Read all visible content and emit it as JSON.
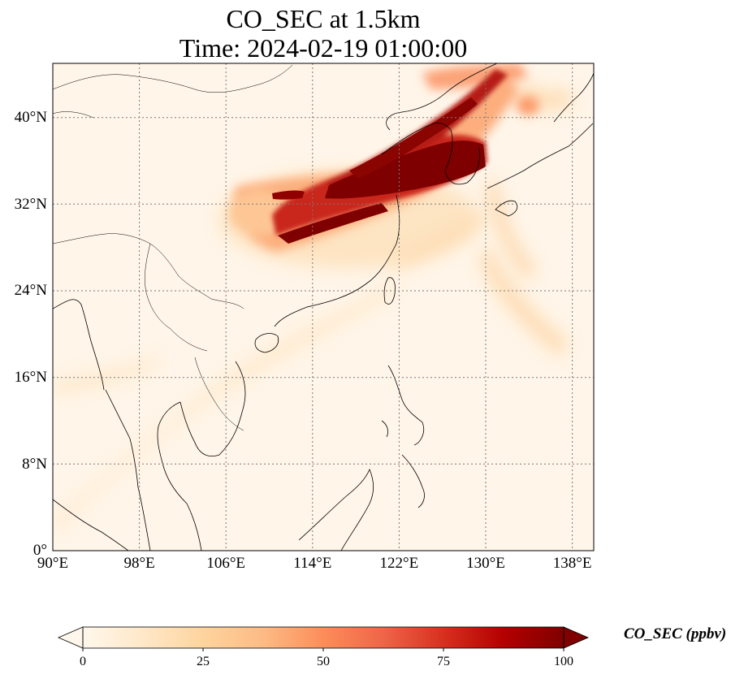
{
  "title_line1": "CO_SEC at 1.5km",
  "title_line2": "Time: 2024-02-19 01:00:00",
  "map": {
    "lon_range": [
      90,
      140
    ],
    "lat_range": [
      0,
      45
    ],
    "x_ticks": [
      "90°E",
      "98°E",
      "106°E",
      "114°E",
      "122°E",
      "130°E",
      "138°E"
    ],
    "y_ticks": [
      "0°",
      "8°N",
      "16°N",
      "24°N",
      "32°N",
      "40°N"
    ],
    "gridlines": "dotted",
    "colormap": "OrRd"
  },
  "colorbar": {
    "label": "CO_SEC (ppbv)",
    "ticks": [
      "0",
      "25",
      "50",
      "75",
      "100"
    ],
    "range": [
      0,
      100
    ],
    "extend": "both",
    "colors": [
      "#fff7ec",
      "#fee8c8",
      "#fdd49e",
      "#fdbb84",
      "#fc8d59",
      "#ef6548",
      "#d7301f",
      "#b30000",
      "#7f0000"
    ]
  }
}
